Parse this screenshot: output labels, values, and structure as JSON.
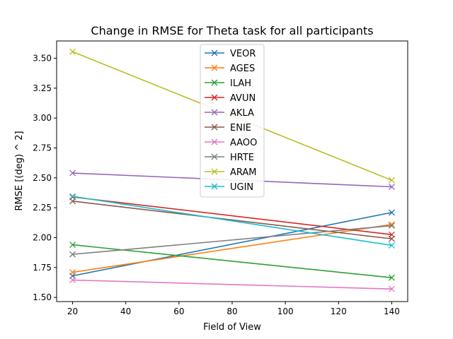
{
  "chart_data": {
    "type": "line",
    "title": "Change in RMSE for Theta task for all participants",
    "xlabel": "Field of View",
    "ylabel": "RMSE [(deg) ^ 2]",
    "x": [
      20,
      140
    ],
    "xlim": [
      14,
      146
    ],
    "ylim": [
      1.465,
      3.645
    ],
    "xticks": [
      20,
      40,
      60,
      80,
      100,
      120,
      140
    ],
    "xtick_labels": [
      "20",
      "40",
      "60",
      "80",
      "100",
      "120",
      "140"
    ],
    "yticks": [
      1.5,
      1.75,
      2.0,
      2.25,
      2.5,
      2.75,
      3.0,
      3.25,
      3.5
    ],
    "ytick_labels": [
      "1.50",
      "1.75",
      "2.00",
      "2.25",
      "2.50",
      "2.75",
      "3.00",
      "3.25",
      "3.50"
    ],
    "grid": false,
    "legend_position": "top-center",
    "marker": "x",
    "series": [
      {
        "name": "VEOR",
        "color": "#1f77b4",
        "values": [
          1.68,
          2.21
        ]
      },
      {
        "name": "AGES",
        "color": "#ff7f0e",
        "values": [
          1.71,
          2.11
        ]
      },
      {
        "name": "ILAH",
        "color": "#2ca02c",
        "values": [
          1.94,
          1.665
        ]
      },
      {
        "name": "AVUN",
        "color": "#d62728",
        "values": [
          2.34,
          2.025
        ]
      },
      {
        "name": "AKLA",
        "color": "#9467bd",
        "values": [
          2.54,
          2.425
        ]
      },
      {
        "name": "ENIE",
        "color": "#8c564b",
        "values": [
          2.305,
          1.99
        ]
      },
      {
        "name": "AAOO",
        "color": "#e377c2",
        "values": [
          1.645,
          1.57
        ]
      },
      {
        "name": "HRTE",
        "color": "#7f7f7f",
        "values": [
          1.86,
          2.1
        ]
      },
      {
        "name": "ARAM",
        "color": "#bcbd22",
        "values": [
          3.555,
          2.48
        ]
      },
      {
        "name": "UGIN",
        "color": "#17becf",
        "values": [
          2.345,
          1.935
        ]
      }
    ]
  }
}
